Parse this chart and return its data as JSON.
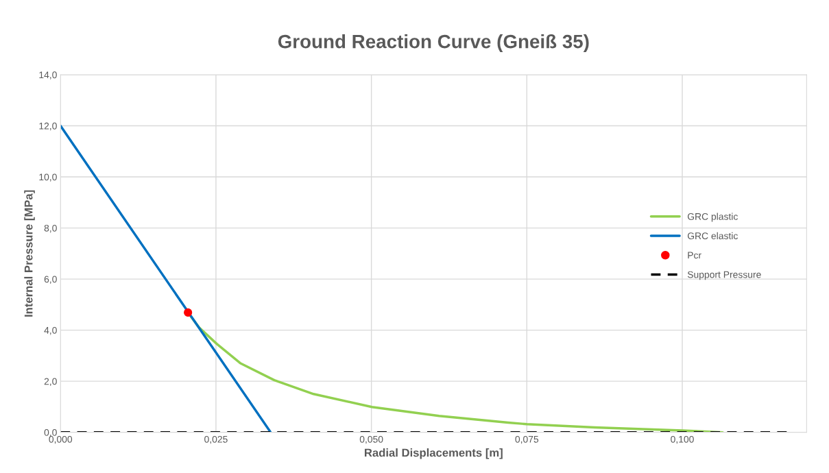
{
  "chart_data": {
    "type": "line",
    "title": "Ground Reaction Curve (Gneiß 35)",
    "xlabel": "Radial Displacements [m]",
    "ylabel": "Internal Pressure [MPa]",
    "xlim": [
      0,
      0.12
    ],
    "xticks": [
      {
        "value": 0,
        "label": "0,000"
      },
      {
        "value": 0.025,
        "label": "0,025"
      },
      {
        "value": 0.05,
        "label": "0,050"
      },
      {
        "value": 0.075,
        "label": "0,075"
      },
      {
        "value": 0.1,
        "label": "0,100"
      }
    ],
    "ylim": [
      0,
      14
    ],
    "yticks": [
      {
        "value": 0,
        "label": "0,0"
      },
      {
        "value": 2,
        "label": "2,0"
      },
      {
        "value": 4,
        "label": "4,0"
      },
      {
        "value": 6,
        "label": "6,0"
      },
      {
        "value": 8,
        "label": "8,0"
      },
      {
        "value": 10,
        "label": "10,0"
      },
      {
        "value": 12,
        "label": "12,0"
      },
      {
        "value": 14,
        "label": "14,0"
      }
    ],
    "grid": true,
    "legend": "right",
    "series": [
      {
        "name": "GRC plastic",
        "color": "#92d050",
        "line_style": "solid",
        "x": [
          0.0205,
          0.0223,
          0.0251,
          0.0289,
          0.0344,
          0.0407,
          0.0501,
          0.0609,
          0.072,
          0.075,
          0.0859,
          0.1,
          0.1065
        ],
        "values": [
          4.69,
          4.1,
          3.47,
          2.71,
          2.04,
          1.5,
          0.99,
          0.64,
          0.38,
          0.32,
          0.19,
          0.07,
          0
        ]
      },
      {
        "name": "GRC elastic",
        "color": "#0070c0",
        "line_style": "solid",
        "x": [
          0,
          0.0338
        ],
        "values": [
          12,
          0
        ]
      },
      {
        "name": "Pcr",
        "color": "#ff0000",
        "type": "scatter",
        "marker": "circle",
        "x": [
          0.0205
        ],
        "values": [
          4.69
        ]
      },
      {
        "name": "Support Pressure",
        "color": "#000000",
        "line_style": "dashed",
        "x": [
          0,
          0.1174
        ],
        "values": [
          0,
          0
        ]
      }
    ]
  }
}
